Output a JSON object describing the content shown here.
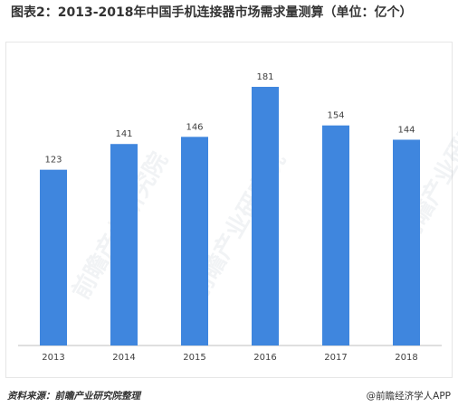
{
  "title": "图表2：2013-2018年中国手机连接器市场需求量测算（单位：亿个）",
  "footer": {
    "source": "资料来源：前瞻产业研究院整理",
    "brand": "@前瞻经济学人APP"
  },
  "watermark": "前瞻产业研究院",
  "colors": {
    "bar": "#3f86de",
    "axis": "#bfbfbf",
    "label": "#404040"
  },
  "chart_data": {
    "type": "bar",
    "categories": [
      "2013",
      "2014",
      "2015",
      "2016",
      "2017",
      "2018"
    ],
    "values": [
      123,
      141,
      146,
      181,
      154,
      144
    ],
    "title": "图表2：2013-2018年中国手机连接器市场需求量测算（单位：亿个）",
    "xlabel": "",
    "ylabel": "",
    "ylim": [
      0,
      200
    ],
    "grid": false,
    "legend": "none",
    "data_labels": true
  }
}
